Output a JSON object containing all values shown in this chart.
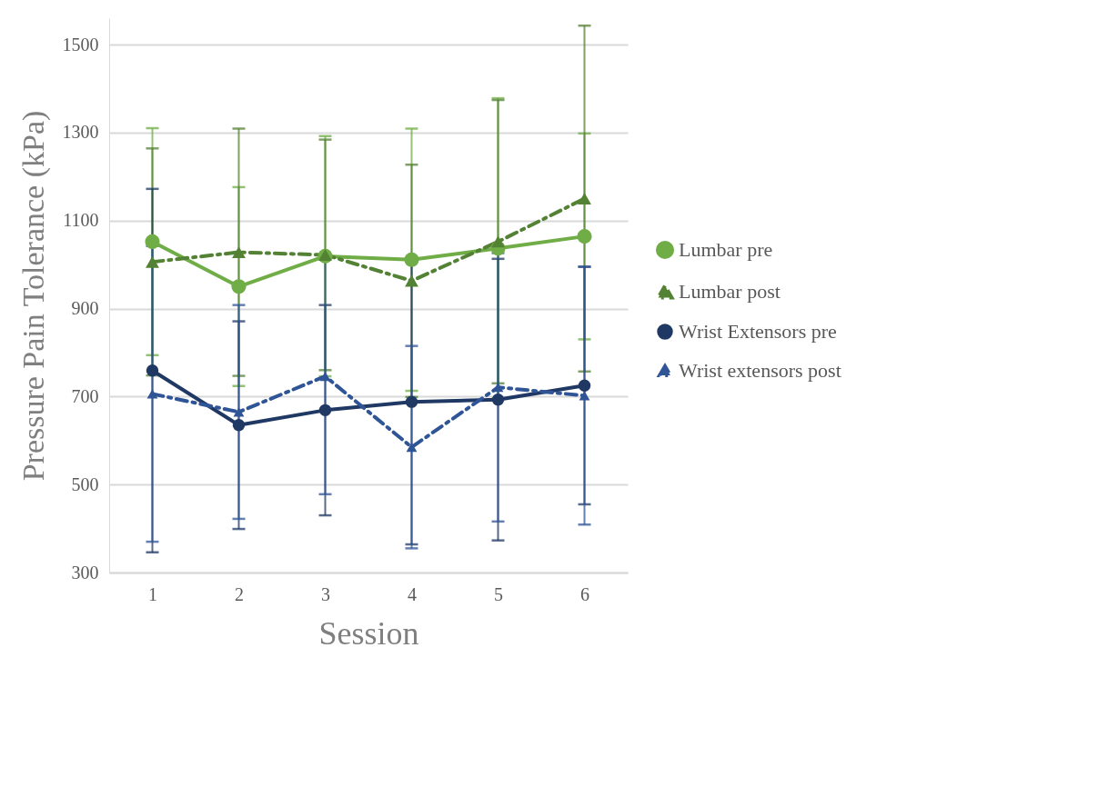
{
  "chart_data": {
    "type": "line",
    "xlabel": "Session",
    "ylabel": "Pressure Pain Tolerance (kPa)",
    "categories": [
      "1",
      "2",
      "3",
      "4",
      "5",
      "6"
    ],
    "series": [
      {
        "name": "Lumbar pre",
        "color": "#70ad47",
        "marker": "circle",
        "line_style": "solid",
        "values": [
          1052,
          950,
          1019,
          1011,
          1037,
          1064
        ],
        "errors": [
          258,
          226,
          273,
          298,
          341,
          234
        ]
      },
      {
        "name": "Lumbar post",
        "color": "#548235",
        "marker": "triangle",
        "line_style": "dashed",
        "values": [
          1006,
          1028,
          1022,
          963,
          1052,
          1150
        ],
        "errors": [
          258,
          281,
          262,
          264,
          322,
          393
        ]
      },
      {
        "name": "Wrist Extensors pre",
        "color": "#203864",
        "marker": "circle",
        "line_style": "solid",
        "values": [
          759,
          635,
          669,
          688,
          693,
          725
        ],
        "errors": [
          413,
          236,
          239,
          324,
          320,
          270
        ]
      },
      {
        "name": "Wrist extensors post",
        "color": "#2f5597",
        "marker": "triangle",
        "line_style": "dashed",
        "values": [
          706,
          665,
          746,
          585,
          721,
          702
        ],
        "errors": [
          336,
          243,
          268,
          230,
          305,
          293
        ]
      }
    ],
    "ylim": [
      300,
      1560
    ],
    "yticks": [
      300,
      500,
      700,
      900,
      1100,
      1300,
      1500
    ],
    "grid": "y",
    "legend": "right"
  }
}
